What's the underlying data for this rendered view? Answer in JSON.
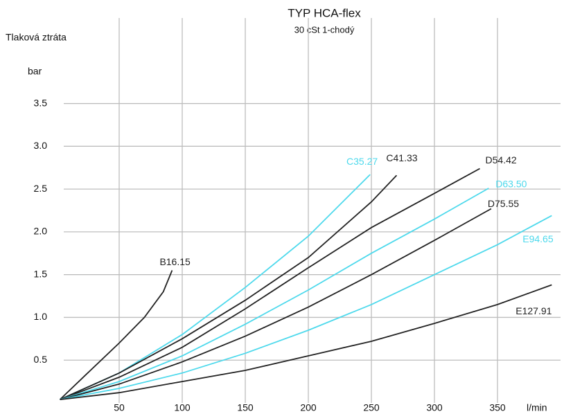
{
  "chart_data": {
    "type": "line",
    "title": "TYP HCA-flex",
    "subtitle": "30 cSt   1-chodý",
    "ylabel": "Tlaková ztráta",
    "yunit": "bar",
    "xlabel": "l/min",
    "xlim": [
      0,
      400
    ],
    "ylim": [
      0,
      4.5
    ],
    "xticks": [
      50,
      100,
      150,
      200,
      250,
      300,
      350
    ],
    "yticks": [
      0.5,
      {
        "value": 1,
        "label": "1.0"
      },
      1.5,
      {
        "value": 2,
        "label": "2.0"
      },
      2.5,
      {
        "value": 3,
        "label": "3.0"
      },
      3.5
    ],
    "grid": true,
    "series": [
      {
        "name": "B16.15",
        "color": "#222222",
        "x": [
          3,
          25,
          50,
          70,
          85,
          92
        ],
        "values": [
          0.04,
          0.35,
          0.7,
          1.0,
          1.3,
          1.55
        ]
      },
      {
        "name": "C35.27",
        "color": "#4dd9ec",
        "x": [
          3,
          50,
          100,
          150,
          200,
          249
        ],
        "values": [
          0.04,
          0.35,
          0.8,
          1.35,
          1.95,
          2.67
        ]
      },
      {
        "name": "C41.33",
        "color": "#222222",
        "x": [
          3,
          50,
          100,
          150,
          200,
          250,
          270
        ],
        "values": [
          0.04,
          0.35,
          0.75,
          1.2,
          1.7,
          2.35,
          2.66
        ]
      },
      {
        "name": "D54.42",
        "color": "#222222",
        "x": [
          3,
          50,
          100,
          150,
          200,
          250,
          300,
          336
        ],
        "values": [
          0.04,
          0.3,
          0.65,
          1.1,
          1.58,
          2.05,
          2.45,
          2.74
        ]
      },
      {
        "name": "D63.50",
        "color": "#4dd9ec",
        "x": [
          3,
          50,
          100,
          150,
          200,
          250,
          300,
          343
        ],
        "values": [
          0.04,
          0.25,
          0.55,
          0.92,
          1.32,
          1.75,
          2.15,
          2.51
        ]
      },
      {
        "name": "D75.55",
        "color": "#222222",
        "x": [
          3,
          50,
          100,
          150,
          200,
          250,
          300,
          345
        ],
        "values": [
          0.04,
          0.22,
          0.48,
          0.78,
          1.12,
          1.5,
          1.9,
          2.27
        ]
      },
      {
        "name": "E94.65",
        "color": "#4dd9ec",
        "x": [
          3,
          50,
          100,
          150,
          200,
          250,
          300,
          350,
          393
        ],
        "values": [
          0.04,
          0.17,
          0.35,
          0.58,
          0.85,
          1.15,
          1.5,
          1.85,
          2.19
        ]
      },
      {
        "name": "E127.91",
        "color": "#222222",
        "x": [
          3,
          50,
          100,
          150,
          200,
          250,
          300,
          350,
          393
        ],
        "values": [
          0.04,
          0.12,
          0.25,
          0.38,
          0.55,
          0.72,
          0.93,
          1.15,
          1.38
        ]
      }
    ]
  }
}
